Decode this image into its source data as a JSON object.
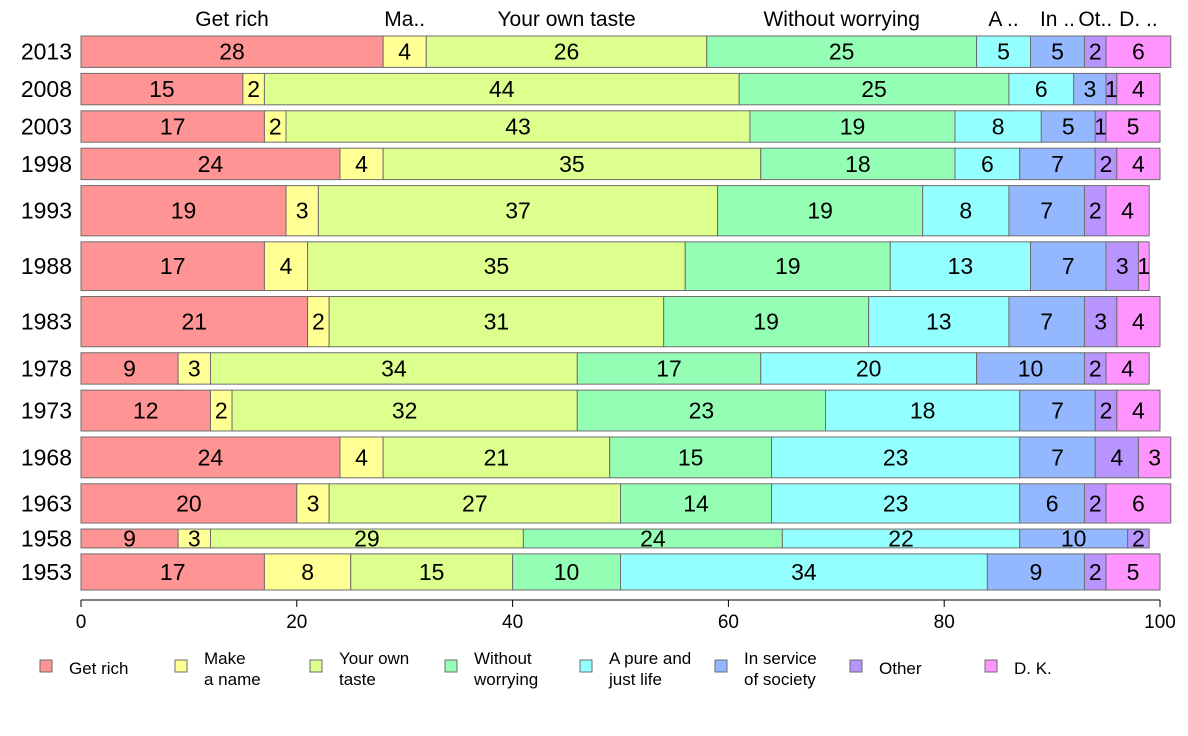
{
  "chart_data": {
    "type": "bar",
    "orientation": "horizontal",
    "stacked": true,
    "categories": [
      "2013",
      "2008",
      "2003",
      "1998",
      "1993",
      "1988",
      "1983",
      "1978",
      "1973",
      "1968",
      "1963",
      "1958",
      "1953"
    ],
    "series": [
      {
        "name": "Get rich",
        "legend_lines": [
          "Get rich"
        ],
        "top_label": "Get rich",
        "color": "#FF9494",
        "values": [
          28,
          15,
          17,
          24,
          19,
          17,
          21,
          9,
          12,
          24,
          20,
          9,
          17
        ]
      },
      {
        "name": "Make a name",
        "legend_lines": [
          "Make",
          "a name"
        ],
        "top_label": "Ma..",
        "color": "#FFFF94",
        "values": [
          4,
          2,
          2,
          4,
          3,
          4,
          2,
          3,
          2,
          4,
          3,
          3,
          8
        ]
      },
      {
        "name": "Your own taste",
        "legend_lines": [
          "Your own",
          "taste"
        ],
        "top_label": "Your own taste",
        "color": "#DDFF8E",
        "values": [
          26,
          44,
          43,
          35,
          37,
          35,
          31,
          34,
          32,
          21,
          27,
          29,
          15
        ]
      },
      {
        "name": "Without worrying",
        "legend_lines": [
          "Without",
          "worrying"
        ],
        "top_label": "Without worrying",
        "color": "#94FFB4",
        "values": [
          25,
          25,
          19,
          18,
          19,
          19,
          19,
          17,
          23,
          15,
          14,
          24,
          10
        ]
      },
      {
        "name": "A pure and just life",
        "legend_lines": [
          "A pure and",
          "just life"
        ],
        "top_label": "A ..",
        "color": "#94FFFF",
        "values": [
          5,
          6,
          8,
          6,
          8,
          13,
          13,
          20,
          18,
          23,
          23,
          22,
          34
        ]
      },
      {
        "name": "In service of society",
        "legend_lines": [
          "In service",
          "of society"
        ],
        "top_label": "In ..",
        "color": "#94B8FF",
        "values": [
          5,
          3,
          5,
          7,
          7,
          7,
          7,
          10,
          7,
          7,
          6,
          10,
          9
        ]
      },
      {
        "name": "Other",
        "legend_lines": [
          "Other"
        ],
        "top_label": "Ot..",
        "color": "#B894FF",
        "values": [
          2,
          1,
          1,
          2,
          2,
          3,
          3,
          2,
          2,
          4,
          2,
          2,
          2
        ]
      },
      {
        "name": "D. K.",
        "legend_lines": [
          "D. K."
        ],
        "top_label": "D. ..",
        "color": "#FF94FF",
        "values": [
          6,
          4,
          5,
          4,
          4,
          1,
          4,
          4,
          4,
          3,
          6,
          0,
          5
        ]
      }
    ],
    "sample_weights": [
      1.0,
      1.0,
      1.0,
      1.0,
      1.6,
      1.55,
      1.6,
      1.0,
      1.3,
      1.3,
      1.25,
      0.6,
      1.15
    ],
    "xlim": [
      0,
      100
    ],
    "xticks": [
      0,
      20,
      40,
      60,
      80,
      100
    ],
    "title": "",
    "xlabel": "",
    "ylabel": "",
    "grid": false,
    "legend_position": "bottom"
  }
}
